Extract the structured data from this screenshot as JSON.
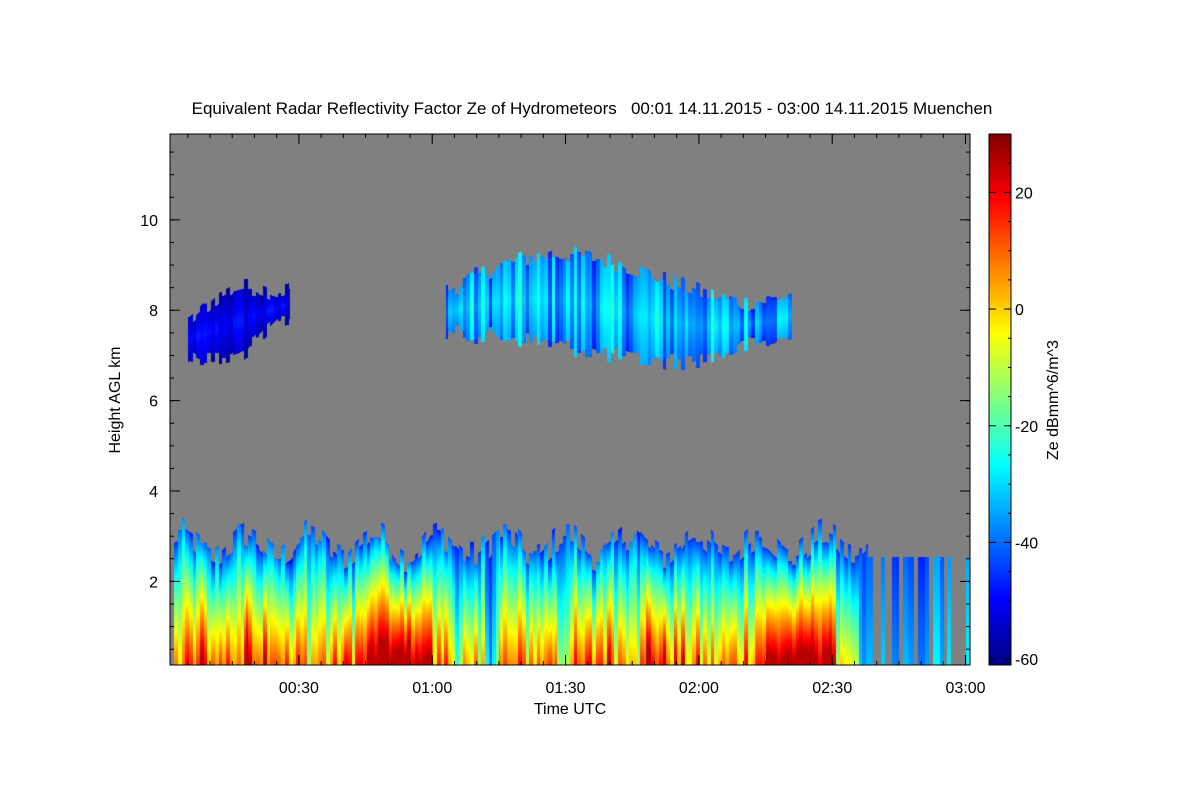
{
  "chart_data": {
    "type": "heatmap",
    "title": "Equivalent Radar Reflectivity Factor Ze of Hydrometeors   00:01 14.11.2015 - 03:00 14.11.2015 Muenchen",
    "xlabel": "Time UTC",
    "ylabel": "Height AGL km",
    "colorbar_label": "Ze dBmm^6/m^3",
    "x_range": [
      "00:01",
      "03:00"
    ],
    "xlim_minutes": [
      1,
      181
    ],
    "x_ticks": [
      {
        "minutes": 30,
        "label": "00:30"
      },
      {
        "minutes": 60,
        "label": "01:00"
      },
      {
        "minutes": 90,
        "label": "01:30"
      },
      {
        "minutes": 120,
        "label": "02:00"
      },
      {
        "minutes": 150,
        "label": "02:30"
      },
      {
        "minutes": 180,
        "label": "03:00"
      }
    ],
    "ylim": [
      0.15,
      11.9
    ],
    "y_ticks": [
      {
        "value": 2,
        "label": "2"
      },
      {
        "value": 4,
        "label": "4"
      },
      {
        "value": 6,
        "label": "6"
      },
      {
        "value": 8,
        "label": "8"
      },
      {
        "value": 10,
        "label": "10"
      }
    ],
    "colorbar_range": [
      -61,
      30
    ],
    "colorbar_ticks": [
      {
        "value": 20,
        "label": "20"
      },
      {
        "value": 0,
        "label": "0"
      },
      {
        "value": -20,
        "label": "-20"
      },
      {
        "value": -40,
        "label": "-40"
      },
      {
        "value": -60,
        "label": "-60"
      }
    ],
    "colormap": "jet",
    "no_data_color": "#808080",
    "features": [
      {
        "name": "low-level precipitation layer",
        "time_start_min": 2,
        "time_end_min": 158,
        "base_km": 0.15,
        "top_km": 3.3,
        "max_dbz": 25
      },
      {
        "name": "upper cloud 00:05-00:28",
        "time_start_min": 5,
        "time_end_min": 28,
        "base_km": 7.0,
        "top_km": 8.5,
        "mean_dbz": -50
      },
      {
        "name": "upper cloud 01:03-02:21",
        "time_start_min": 63,
        "time_end_min": 141,
        "base_km": 6.9,
        "top_km": 9.0,
        "mean_dbz": -32
      },
      {
        "name": "weak echoes after 02:36",
        "time_start_min": 156,
        "time_end_min": 181,
        "base_km": 0.15,
        "top_km": 2.5,
        "mean_dbz": -45
      }
    ]
  }
}
